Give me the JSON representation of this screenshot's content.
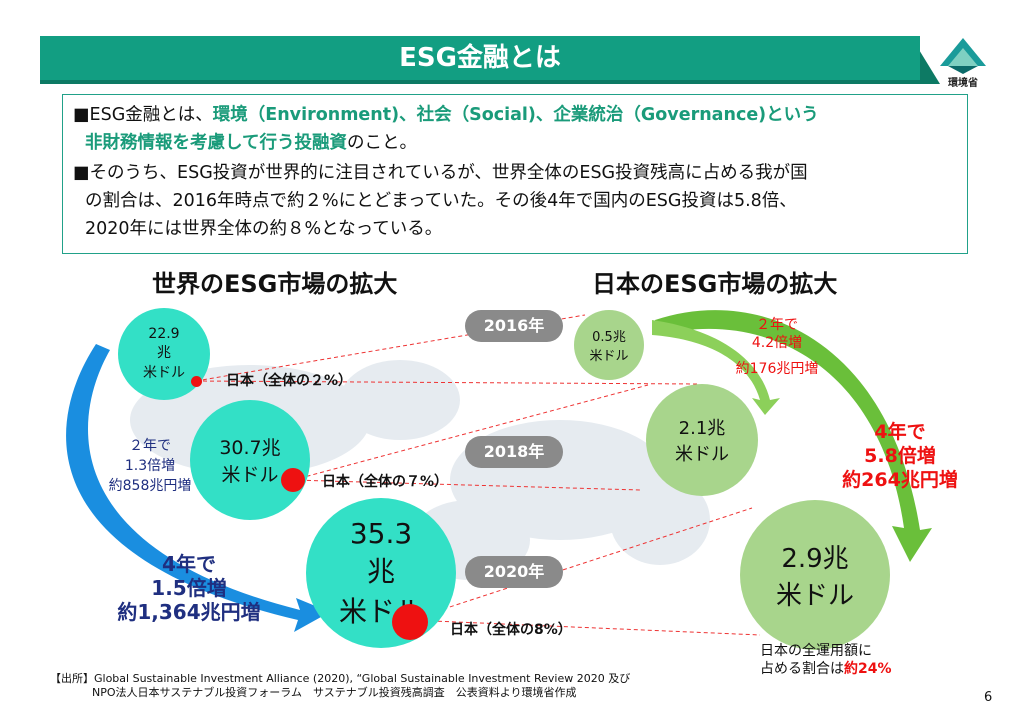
{
  "title": "ESG金融とは",
  "logo_text": "環境省",
  "summary": {
    "p1_pre": "■ESG金融とは、",
    "p1_green1": "環境（Environment)、社会（Social)、企業統治（Governance)という",
    "p1_green2": "非財務情報を考慮して行う投融資",
    "p1_post": "のこと。",
    "p2_line1": "■そのうち、ESG投資が世界的に注目されているが、世界全体のESG投資残高に占める我が国",
    "p2_line2": "の割合は、2016年時点で約２%にとどまっていた。その後4年で国内のESG投資は5.8倍、",
    "p2_line3": "2020年には世界全体の約８%となっている。"
  },
  "world": {
    "heading": "世界のESG市場の拡大",
    "c2016": [
      "22.9",
      "兆",
      "米ドル"
    ],
    "c2018": [
      "30.7兆",
      "米ドル"
    ],
    "c2020": [
      "35.3",
      "兆",
      "米ドル"
    ],
    "growth_2y": [
      "２年で",
      "1.3倍増",
      "約858兆円増"
    ],
    "growth_4y": [
      "4年で",
      "1.5倍増",
      "約1,364兆円増"
    ]
  },
  "japan": {
    "heading": "日本のESG市場の拡大",
    "c2016": [
      "0.5兆",
      "米ドル"
    ],
    "c2018": [
      "2.1兆",
      "米ドル"
    ],
    "c2020": [
      "2.9兆",
      "米ドル"
    ],
    "growth_2y": [
      "２年で",
      "4.2倍増",
      "約176兆円増"
    ],
    "growth_4y": [
      "4年で",
      "5.8倍増",
      "約264兆円増"
    ],
    "share_note": [
      "日本の全運用額に",
      "占める割合は"
    ],
    "share_value": "約24%"
  },
  "years": [
    "2016年",
    "2018年",
    "2020年"
  ],
  "share_labels": [
    "日本（全体の２%）",
    "日本（全体の７%）",
    "日本（全体の8%）"
  ],
  "source": {
    "line1": "【出所】Global Sustainable Investment Alliance (2020), “Global Sustainable Investment Review 2020  及び",
    "line2": "NPO法人日本サステナブル投資フォーラム　サステナブル投資残高調査　公表資料より環境省作成"
  },
  "page_number": "6",
  "colors": {
    "title_bar": "#129e82",
    "teal_circle": "#33e0c6",
    "green_circle": "#a8d58c",
    "accent_red": "#ee1111",
    "navy": "#1f2f80",
    "arrow_blue": "#1a8ee0",
    "arrow_green": "#6abf3a"
  }
}
